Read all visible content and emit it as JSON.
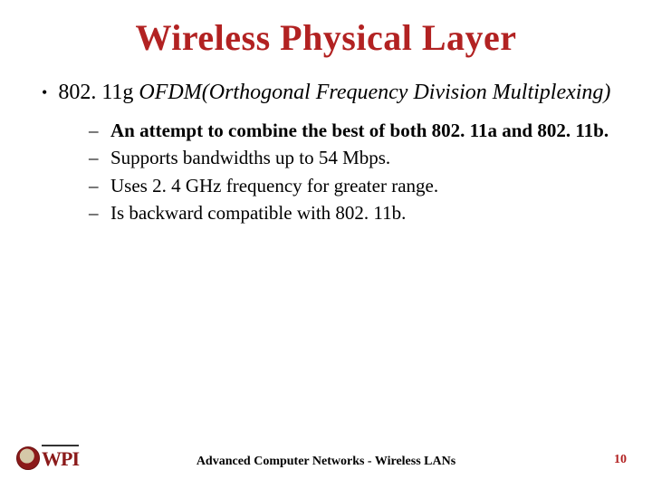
{
  "title": "Wireless Physical Layer",
  "main": {
    "lead": "802. 11g ",
    "italic": "OFDM(Orthogonal Frequency Division Multiplexing)"
  },
  "subs": [
    {
      "text": "An attempt to combine the best of both 802. 11a and 802. 11b.",
      "bold": true
    },
    {
      "text": "Supports bandwidths up to 54 Mbps.",
      "bold": false
    },
    {
      "text": "Uses 2. 4 GHz frequency for greater range.",
      "bold": false
    },
    {
      "text": "Is backward compatible with 802. 11b.",
      "bold": false
    }
  ],
  "footer": {
    "logo_text": "WPI",
    "center": "Advanced Computer Networks - Wireless LANs",
    "page": "10"
  },
  "colors": {
    "title": "#b22222",
    "text": "#000000",
    "accent": "#8b1a1a",
    "background": "#ffffff"
  }
}
